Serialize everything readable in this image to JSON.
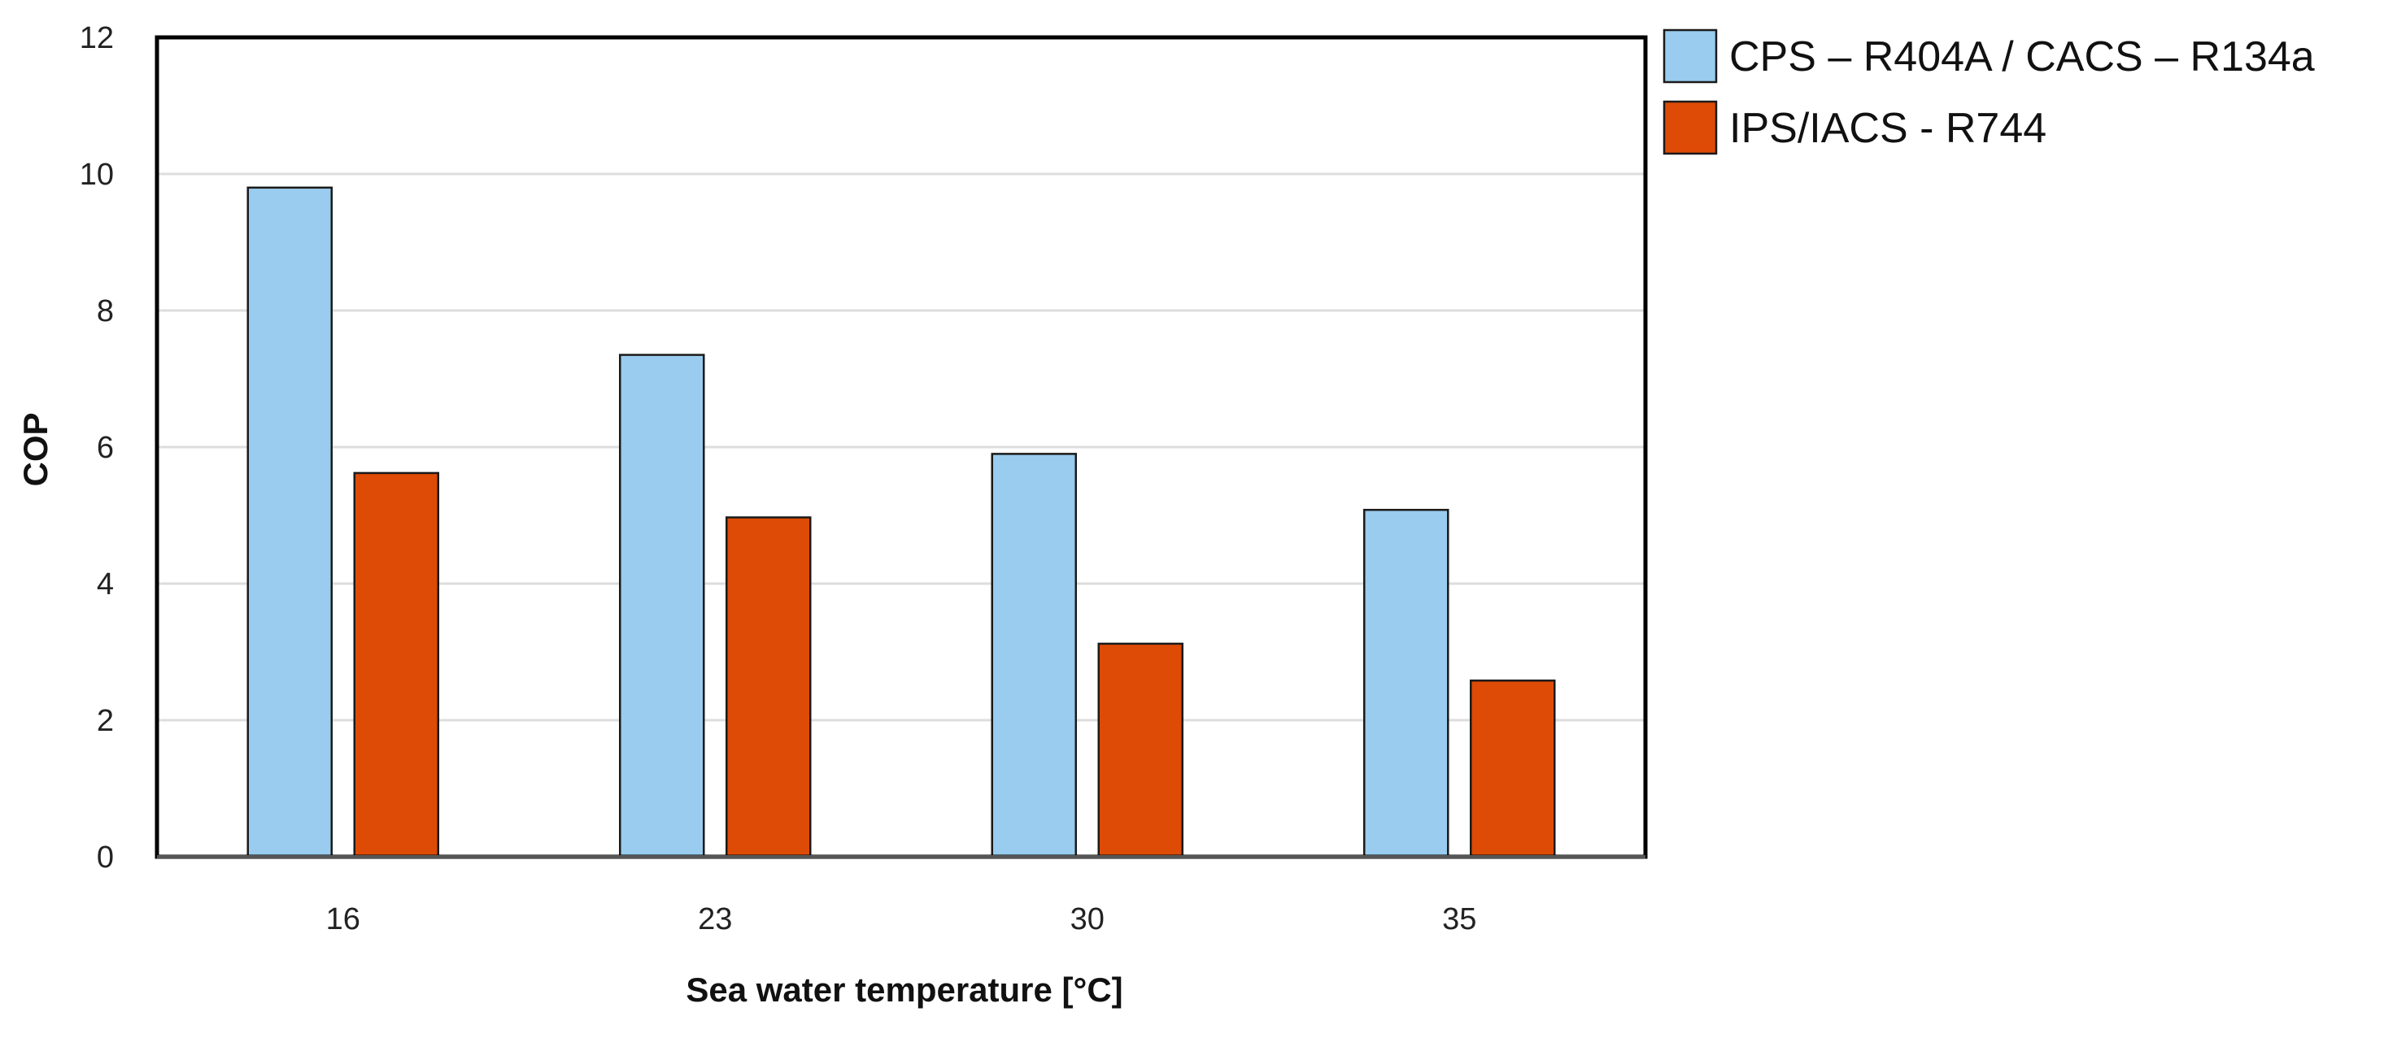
{
  "chart_data": {
    "type": "bar",
    "title": "",
    "xlabel": "Sea water temperature [°C]",
    "ylabel": "COP",
    "categories": [
      "16",
      "23",
      "30",
      "35"
    ],
    "ylim": [
      0,
      12
    ],
    "yticks": [
      0,
      2,
      4,
      6,
      8,
      10,
      12
    ],
    "grid": true,
    "legend_position": "right-top",
    "series": [
      {
        "name": "CPS – R404A / CACS – R134a",
        "color": "#99CCEE",
        "values": [
          9.8,
          7.35,
          5.9,
          5.08
        ]
      },
      {
        "name": "IPS/IACS  - R744",
        "color": "#DD4B06",
        "values": [
          5.62,
          4.97,
          3.12,
          2.58
        ]
      }
    ]
  }
}
